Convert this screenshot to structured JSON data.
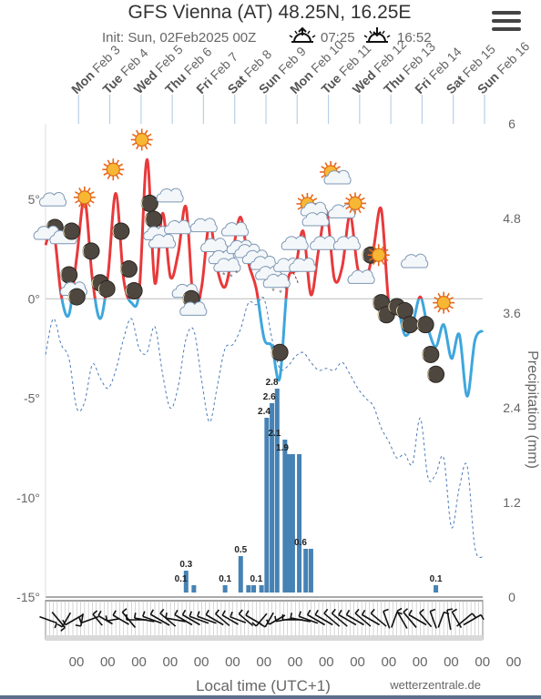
{
  "header": {
    "title": "GFS Vienna (AT) 48.25N, 16.25E",
    "init": "Init: Sun, 02Feb2025 00Z",
    "sunrise": "07:25",
    "sunset": "16:52"
  },
  "menu": {
    "icon": "hamburger-menu-icon"
  },
  "colors": {
    "temp_above": "#e8393b",
    "temp_below": "#3ea6dd",
    "dewpoint": "#4a7ab8",
    "precip_bar": "#4682b4",
    "freezing": "#4a4a4a"
  },
  "chart_data": {
    "type": "line",
    "days": [
      {
        "wd": "Mon",
        "d": "Feb 3"
      },
      {
        "wd": "Tue",
        "d": "Feb 4"
      },
      {
        "wd": "Wed",
        "d": "Feb 5"
      },
      {
        "wd": "Thu",
        "d": "Feb 6"
      },
      {
        "wd": "Fri",
        "d": "Feb 7"
      },
      {
        "wd": "Sat",
        "d": "Feb 8"
      },
      {
        "wd": "Sun",
        "d": "Feb 9"
      },
      {
        "wd": "Mon",
        "d": "Feb 10"
      },
      {
        "wd": "Tue",
        "d": "Feb 11"
      },
      {
        "wd": "Wed",
        "d": "Feb 12"
      },
      {
        "wd": "Thu",
        "d": "Feb 13"
      },
      {
        "wd": "Fri",
        "d": "Feb 14"
      },
      {
        "wd": "Sat",
        "d": "Feb 15"
      },
      {
        "wd": "Sun",
        "d": "Feb 16"
      }
    ],
    "x_labels": [
      "00",
      "00",
      "00",
      "00",
      "00",
      "00",
      "00",
      "00",
      "00",
      "00",
      "00",
      "00",
      "00",
      "00",
      "00"
    ],
    "xlabel": "Local time (UTC+1)",
    "y_left": {
      "ticks": [
        "5°",
        "0°",
        "-5°",
        "-10°",
        "-15°"
      ],
      "values": [
        5,
        0,
        -5,
        -10,
        -15
      ],
      "ylim": [
        -15,
        8.8
      ]
    },
    "y_right": {
      "label": "Precipitation (mm)",
      "ticks": [
        "6",
        "4.8",
        "3.6",
        "2.4",
        "1.2",
        "0"
      ],
      "values": [
        6,
        4.8,
        3.6,
        2.4,
        1.2,
        0
      ],
      "ylim": [
        0,
        6
      ]
    },
    "x_range_hours": [
      0,
      336
    ],
    "series": [
      {
        "kind": "temperature",
        "x": [
          0,
          6,
          12,
          18,
          24,
          30,
          36,
          42,
          48,
          54,
          60,
          66,
          72,
          78,
          84,
          90,
          96,
          102,
          108,
          114,
          120,
          126,
          132,
          138,
          144,
          150,
          156,
          162,
          168,
          174,
          180,
          186,
          192,
          198,
          204,
          210,
          216,
          222,
          228,
          234,
          240,
          246,
          252,
          258,
          264,
          270,
          276,
          282,
          288,
          294,
          300,
          306,
          312,
          318,
          324,
          330,
          336
        ],
        "y": [
          2.7,
          3.5,
          0.2,
          -0.8,
          2.1,
          5.0,
          1.0,
          -1.0,
          1.2,
          5.3,
          1.0,
          -0.2,
          0.4,
          7.0,
          0.8,
          4.3,
          1.1,
          2.3,
          4.6,
          -0.5,
          0.6,
          3.8,
          1.5,
          0.6,
          2.4,
          4.1,
          1.8,
          0.5,
          -2.0,
          -2.4,
          -4.0,
          0.8,
          1.5,
          3.4,
          0.2,
          2.5,
          4.4,
          1.0,
          1.6,
          4.2,
          1.5,
          0.9,
          2.5,
          4.5,
          -0.3,
          -0.2,
          -1.8,
          -1.3,
          0.1,
          -1.5,
          -2.4,
          -1.3,
          -3.0,
          -1.8,
          -4.9,
          -2.1,
          -1.6
        ]
      },
      {
        "kind": "dewpoint",
        "x": [
          0,
          6,
          12,
          18,
          24,
          30,
          36,
          42,
          48,
          54,
          60,
          66,
          72,
          78,
          84,
          90,
          96,
          102,
          108,
          114,
          120,
          126,
          132,
          138,
          144,
          150,
          156,
          162,
          168,
          174,
          180,
          186,
          192,
          198,
          204,
          210,
          216,
          222,
          228,
          234,
          240,
          246,
          252,
          258,
          264,
          270,
          276,
          282,
          288,
          294,
          300,
          306,
          312,
          318,
          324,
          330,
          336
        ],
        "y": [
          -2.8,
          -1.0,
          -2.3,
          -3.0,
          -5.5,
          -5.2,
          -3.3,
          -4.0,
          -4.5,
          -3.6,
          -2.0,
          -1.0,
          -2.5,
          -2.7,
          -1.4,
          -3.8,
          -5.5,
          -4.4,
          -2.0,
          -1.6,
          -4.1,
          -6.2,
          -4.4,
          -2.5,
          -2.3,
          -1.5,
          -0.2,
          -0.3,
          0.0,
          -2.0,
          -3.5,
          -3.4,
          -2.9,
          -2.7,
          -3.2,
          -3.6,
          -3.5,
          -3.6,
          -3.2,
          -3.8,
          -4.5,
          -5.0,
          -5.4,
          -6.5,
          -7.2,
          -8.0,
          -7.8,
          -8.3,
          -6.0,
          -9.0,
          -8.8,
          -8.0,
          -11.5,
          -9.5,
          -8.4,
          -12.5,
          -13.0
        ]
      }
    ],
    "precipitation": {
      "x": [
        108,
        114,
        138,
        150,
        156,
        160,
        166,
        170,
        174,
        178,
        184,
        187,
        190,
        195,
        200,
        204,
        300
      ],
      "mm": [
        0.3,
        0.1,
        0.1,
        0.5,
        0.1,
        0.1,
        0.1,
        2.4,
        2.6,
        2.8,
        2.1,
        1.9,
        1.9,
        1.9,
        0.6,
        0.6,
        0.1
      ],
      "labels": [
        {
          "x": 108,
          "mm": 0.3,
          "text": "0.3"
        },
        {
          "x": 104,
          "mm": 0.1,
          "text": "0.1"
        },
        {
          "x": 138,
          "mm": 0.1,
          "text": "0.1"
        },
        {
          "x": 150,
          "mm": 0.5,
          "text": "0.5"
        },
        {
          "x": 162,
          "mm": 0.1,
          "text": "0.1"
        },
        {
          "x": 174,
          "mm": 2.8,
          "text": "2.8"
        },
        {
          "x": 172,
          "mm": 2.6,
          "text": "2.6"
        },
        {
          "x": 168,
          "mm": 2.4,
          "text": "2.4"
        },
        {
          "x": 176,
          "mm": 2.1,
          "text": "2.1"
        },
        {
          "x": 182,
          "mm": 1.9,
          "text": "1.9"
        },
        {
          "x": 196,
          "mm": 0.6,
          "text": "0.6"
        },
        {
          "x": 300,
          "mm": 0.1,
          "text": "0.1"
        }
      ]
    },
    "weather_symbols": [
      {
        "x": 6,
        "y": 4.9,
        "icon": "cloud"
      },
      {
        "x": 3,
        "y": 3.4,
        "icon": "partly-cloudy-night"
      },
      {
        "x": 14,
        "y": 3.0,
        "icon": "cloud"
      },
      {
        "x": 20,
        "y": 3.4,
        "icon": "moon"
      },
      {
        "x": 18,
        "y": 1.2,
        "icon": "moon"
      },
      {
        "x": 22,
        "y": 0.4,
        "icon": "cloud"
      },
      {
        "x": 24,
        "y": 0.1,
        "icon": "moon"
      },
      {
        "x": 30,
        "y": 5.1,
        "icon": "sun"
      },
      {
        "x": 35,
        "y": 2.4,
        "icon": "moon"
      },
      {
        "x": 42,
        "y": 0.8,
        "icon": "moon"
      },
      {
        "x": 47,
        "y": 0.5,
        "icon": "moon"
      },
      {
        "x": 52,
        "y": 6.5,
        "icon": "sun"
      },
      {
        "x": 58,
        "y": 3.4,
        "icon": "moon"
      },
      {
        "x": 64,
        "y": 1.5,
        "icon": "moon"
      },
      {
        "x": 68,
        "y": 0.4,
        "icon": "moon"
      },
      {
        "x": 74,
        "y": 8.0,
        "icon": "sun"
      },
      {
        "x": 80,
        "y": 4.8,
        "icon": "moon"
      },
      {
        "x": 83,
        "y": 4.0,
        "icon": "moon"
      },
      {
        "x": 86,
        "y": 3.2,
        "icon": "cloud"
      },
      {
        "x": 90,
        "y": 2.8,
        "icon": "cloud"
      },
      {
        "x": 96,
        "y": 5.1,
        "icon": "cloud"
      },
      {
        "x": 102,
        "y": 3.5,
        "icon": "cloud"
      },
      {
        "x": 108,
        "y": 0.3,
        "icon": "cloud"
      },
      {
        "x": 112,
        "y": 0.0,
        "icon": "moon"
      },
      {
        "x": 114,
        "y": -0.6,
        "icon": "cloud"
      },
      {
        "x": 122,
        "y": 3.6,
        "icon": "cloud"
      },
      {
        "x": 130,
        "y": 2.6,
        "icon": "cloud"
      },
      {
        "x": 136,
        "y": 2.0,
        "icon": "cloud"
      },
      {
        "x": 140,
        "y": 1.6,
        "icon": "snow-cloud"
      },
      {
        "x": 146,
        "y": 3.4,
        "icon": "cloud"
      },
      {
        "x": 150,
        "y": 2.5,
        "icon": "cloud"
      },
      {
        "x": 156,
        "y": 2.3,
        "icon": "cloud"
      },
      {
        "x": 162,
        "y": 2.0,
        "icon": "snow-cloud"
      },
      {
        "x": 168,
        "y": 1.7,
        "icon": "snow-cloud"
      },
      {
        "x": 172,
        "y": 1.2,
        "icon": "snow-cloud"
      },
      {
        "x": 178,
        "y": 0.8,
        "icon": "snow-cloud"
      },
      {
        "x": 180,
        "y": -2.7,
        "icon": "moon"
      },
      {
        "x": 186,
        "y": 1.6,
        "icon": "cloud"
      },
      {
        "x": 192,
        "y": 2.7,
        "icon": "cloud"
      },
      {
        "x": 198,
        "y": 1.6,
        "icon": "cloud"
      },
      {
        "x": 204,
        "y": 4.5,
        "icon": "partly-cloudy"
      },
      {
        "x": 208,
        "y": 3.9,
        "icon": "cloud"
      },
      {
        "x": 214,
        "y": 2.7,
        "icon": "cloud"
      },
      {
        "x": 222,
        "y": 6.1,
        "icon": "partly-cloudy"
      },
      {
        "x": 228,
        "y": 4.3,
        "icon": "cloud"
      },
      {
        "x": 232,
        "y": 2.7,
        "icon": "cloud"
      },
      {
        "x": 238,
        "y": 4.8,
        "icon": "sun"
      },
      {
        "x": 243,
        "y": 1.0,
        "icon": "cloud"
      },
      {
        "x": 250,
        "y": 2.2,
        "icon": "moon"
      },
      {
        "x": 256,
        "y": 2.2,
        "icon": "sun"
      },
      {
        "x": 258,
        "y": -0.2,
        "icon": "moon"
      },
      {
        "x": 262,
        "y": -0.8,
        "icon": "moon"
      },
      {
        "x": 270,
        "y": -0.4,
        "icon": "moon"
      },
      {
        "x": 276,
        "y": -0.6,
        "icon": "moon"
      },
      {
        "x": 280,
        "y": -1.3,
        "icon": "moon"
      },
      {
        "x": 284,
        "y": 1.8,
        "icon": "cloud"
      },
      {
        "x": 292,
        "y": -1.3,
        "icon": "moon"
      },
      {
        "x": 296,
        "y": -2.8,
        "icon": "moon"
      },
      {
        "x": 300,
        "y": -3.8,
        "icon": "moon"
      },
      {
        "x": 306,
        "y": -0.2,
        "icon": "sun"
      }
    ],
    "wind_barbs": [
      {
        "x": 2,
        "dir": 110,
        "len": 20
      },
      {
        "x": 10,
        "dir": 140,
        "len": 22
      },
      {
        "x": 16,
        "dir": 210,
        "len": 18
      },
      {
        "x": 22,
        "dir": 240,
        "len": 22
      },
      {
        "x": 28,
        "dir": 190,
        "len": 14
      },
      {
        "x": 34,
        "dir": 250,
        "len": 20
      },
      {
        "x": 40,
        "dir": 320,
        "len": 16
      },
      {
        "x": 46,
        "dir": 300,
        "len": 18
      },
      {
        "x": 52,
        "dir": 260,
        "len": 14
      },
      {
        "x": 58,
        "dir": 300,
        "len": 20
      },
      {
        "x": 64,
        "dir": 320,
        "len": 22
      },
      {
        "x": 70,
        "dir": 270,
        "len": 22
      },
      {
        "x": 76,
        "dir": 280,
        "len": 22
      },
      {
        "x": 82,
        "dir": 290,
        "len": 22
      },
      {
        "x": 88,
        "dir": 300,
        "len": 24
      },
      {
        "x": 94,
        "dir": 310,
        "len": 22
      },
      {
        "x": 100,
        "dir": 280,
        "len": 22
      },
      {
        "x": 106,
        "dir": 300,
        "len": 22
      },
      {
        "x": 112,
        "dir": 300,
        "len": 22
      },
      {
        "x": 118,
        "dir": 290,
        "len": 22
      },
      {
        "x": 124,
        "dir": 290,
        "len": 22
      },
      {
        "x": 130,
        "dir": 300,
        "len": 22
      },
      {
        "x": 136,
        "dir": 310,
        "len": 20
      },
      {
        "x": 142,
        "dir": 300,
        "len": 20
      },
      {
        "x": 148,
        "dir": 290,
        "len": 18
      },
      {
        "x": 154,
        "dir": 310,
        "len": 20
      },
      {
        "x": 160,
        "dir": 300,
        "len": 20
      },
      {
        "x": 166,
        "dir": 220,
        "len": 18
      },
      {
        "x": 172,
        "dir": 210,
        "len": 18
      },
      {
        "x": 178,
        "dir": 240,
        "len": 20
      },
      {
        "x": 184,
        "dir": 260,
        "len": 20
      },
      {
        "x": 190,
        "dir": 270,
        "len": 22
      },
      {
        "x": 196,
        "dir": 280,
        "len": 22
      },
      {
        "x": 202,
        "dir": 290,
        "len": 22
      },
      {
        "x": 208,
        "dir": 300,
        "len": 22
      },
      {
        "x": 214,
        "dir": 300,
        "len": 22
      },
      {
        "x": 220,
        "dir": 310,
        "len": 22
      },
      {
        "x": 226,
        "dir": 310,
        "len": 22
      },
      {
        "x": 232,
        "dir": 300,
        "len": 22
      },
      {
        "x": 238,
        "dir": 300,
        "len": 22
      },
      {
        "x": 244,
        "dir": 310,
        "len": 22
      },
      {
        "x": 250,
        "dir": 300,
        "len": 22
      },
      {
        "x": 256,
        "dir": 310,
        "len": 22
      },
      {
        "x": 262,
        "dir": 340,
        "len": 20
      },
      {
        "x": 268,
        "dir": 20,
        "len": 18
      },
      {
        "x": 274,
        "dir": 330,
        "len": 22
      },
      {
        "x": 280,
        "dir": 320,
        "len": 22
      },
      {
        "x": 286,
        "dir": 300,
        "len": 22
      },
      {
        "x": 292,
        "dir": 320,
        "len": 20
      },
      {
        "x": 298,
        "dir": 340,
        "len": 20
      },
      {
        "x": 304,
        "dir": 20,
        "len": 18
      },
      {
        "x": 310,
        "dir": 350,
        "len": 22
      },
      {
        "x": 316,
        "dir": 330,
        "len": 20
      },
      {
        "x": 322,
        "dir": 50,
        "len": 22
      },
      {
        "x": 328,
        "dir": 60,
        "len": 22
      }
    ],
    "watermark": "wetterzentrale.de"
  }
}
